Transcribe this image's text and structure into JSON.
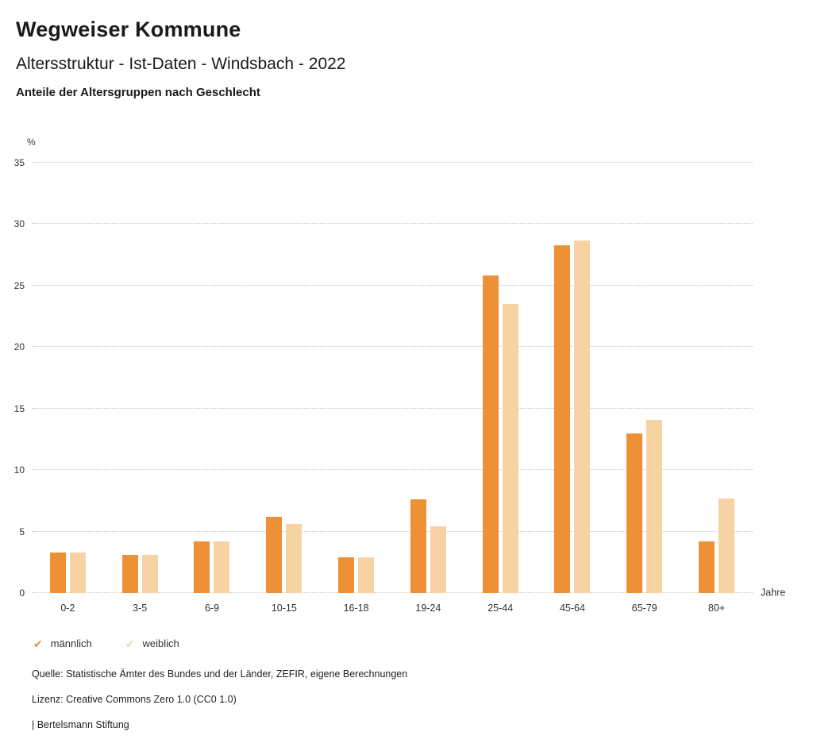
{
  "header": {
    "title": "Wegweiser Kommune",
    "subtitle": "Altersstruktur - Ist-Daten - Windsbach - 2022",
    "description": "Anteile der Altersgruppen nach Geschlecht"
  },
  "chart_data": {
    "type": "bar",
    "categories": [
      "0-2",
      "3-5",
      "6-9",
      "10-15",
      "16-18",
      "19-24",
      "25-44",
      "45-64",
      "65-79",
      "80+"
    ],
    "series": [
      {
        "name": "männlich",
        "color": "#ED9036",
        "values": [
          3.3,
          3.1,
          4.2,
          6.2,
          2.9,
          7.6,
          25.8,
          28.3,
          13.0,
          4.2
        ]
      },
      {
        "name": "weiblich",
        "color": "#F7D3A3",
        "values": [
          3.3,
          3.1,
          4.2,
          5.6,
          2.9,
          5.4,
          23.5,
          28.7,
          14.1,
          7.7
        ]
      }
    ],
    "title": "Anteile der Altersgruppen nach Geschlecht",
    "xlabel": "Jahre",
    "ylabel": "%",
    "ylim": [
      0,
      35
    ],
    "ytick_step": 5,
    "grid": true,
    "gridline_style": "dotted",
    "legend_position": "bottom",
    "legend_icon": "checkmark"
  },
  "footer": {
    "source": "Quelle: Statistische Ämter des Bundes und der Länder, ZEFIR, eigene Berechnungen",
    "license": "Lizenz: Creative Commons Zero 1.0 (CC0 1.0)",
    "attribution": "| Bertelsmann Stiftung"
  }
}
